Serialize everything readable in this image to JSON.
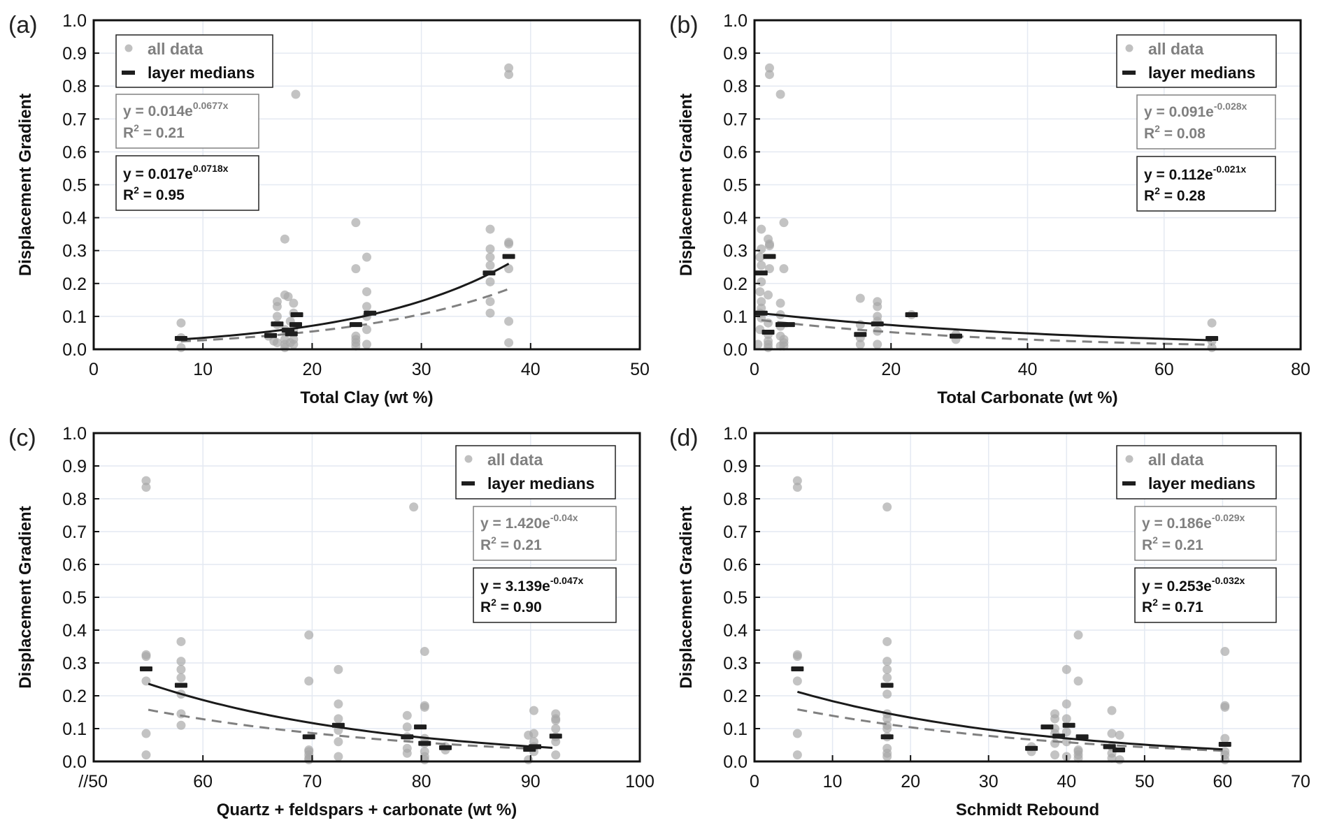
{
  "chart_data": [
    {
      "type": "scatter",
      "panel_label": "(a)",
      "xlabel": "Total Clay (wt %)",
      "ylabel": "Displacement Gradient",
      "xlim": [
        0,
        50
      ],
      "ylim": [
        0,
        1.0
      ],
      "xticks": [
        0,
        10,
        20,
        30,
        40,
        50
      ],
      "xtick_labels": [
        "0",
        "10",
        "20",
        "30",
        "40",
        "50"
      ],
      "yticks": [
        0,
        0.1,
        0.2,
        0.3,
        0.4,
        0.5,
        0.6,
        0.7,
        0.8,
        0.9,
        1.0
      ],
      "ytick_labels": [
        "0.0",
        "0.1",
        "0.2",
        "0.3",
        "0.4",
        "0.5",
        "0.6",
        "0.7",
        "0.8",
        "0.9",
        "1.0"
      ],
      "grid": true,
      "legend": {
        "placement": "top-left",
        "entries": [
          "all data",
          "layer medians"
        ]
      },
      "fit_all": {
        "eq_prefix": "y = 0.014e",
        "eq_exp": "0.0677x",
        "r2_label": "R",
        "r2_sup": "2",
        "r2_value": " = 0.21",
        "a": 0.014,
        "b": 0.0677,
        "x_range": [
          8,
          38
        ]
      },
      "fit_medians": {
        "eq_prefix": "y = 0.017e",
        "eq_exp": "0.0718x",
        "r2_label": "R",
        "r2_sup": "2",
        "r2_value": " = 0.95",
        "a": 0.017,
        "b": 0.0718,
        "x_range": [
          8,
          38
        ]
      },
      "all_data": [
        [
          8,
          0.08
        ],
        [
          8,
          0.035
        ],
        [
          8,
          0.005
        ],
        [
          16,
          0.04
        ],
        [
          16.5,
          0.025
        ],
        [
          16.8,
          0.145
        ],
        [
          16.8,
          0.13
        ],
        [
          16.8,
          0.1
        ],
        [
          16.8,
          0.075
        ],
        [
          16.8,
          0.02
        ],
        [
          17.5,
          0.335
        ],
        [
          17.5,
          0.165
        ],
        [
          17.5,
          0.06
        ],
        [
          17.5,
          0.03
        ],
        [
          17.5,
          0.015
        ],
        [
          17.5,
          0.005
        ],
        [
          17.8,
          0.16
        ],
        [
          18,
          0.085
        ],
        [
          18,
          0.02
        ],
        [
          18.3,
          0.14
        ],
        [
          18.3,
          0.11
        ],
        [
          18.3,
          0.06
        ],
        [
          18.3,
          0.03
        ],
        [
          18.3,
          0.015
        ],
        [
          18.5,
          0.775
        ],
        [
          24,
          0.385
        ],
        [
          24,
          0.245
        ],
        [
          24,
          0.04
        ],
        [
          24,
          0.03
        ],
        [
          24,
          0.02
        ],
        [
          24,
          0.01
        ],
        [
          25,
          0.28
        ],
        [
          25,
          0.175
        ],
        [
          25,
          0.13
        ],
        [
          25,
          0.1
        ],
        [
          25,
          0.06
        ],
        [
          25,
          0.015
        ],
        [
          36.3,
          0.365
        ],
        [
          36.3,
          0.305
        ],
        [
          36.3,
          0.28
        ],
        [
          36.3,
          0.255
        ],
        [
          36.3,
          0.205
        ],
        [
          36.3,
          0.145
        ],
        [
          36.3,
          0.11
        ],
        [
          38,
          0.855
        ],
        [
          38,
          0.835
        ],
        [
          38,
          0.325
        ],
        [
          38,
          0.32
        ],
        [
          38,
          0.245
        ],
        [
          38,
          0.085
        ],
        [
          38,
          0.02
        ]
      ],
      "medians": [
        [
          8,
          0.033
        ],
        [
          16.2,
          0.042
        ],
        [
          16.8,
          0.077
        ],
        [
          17.8,
          0.058
        ],
        [
          18.1,
          0.047
        ],
        [
          18.5,
          0.075
        ],
        [
          18.6,
          0.105
        ],
        [
          24,
          0.075
        ],
        [
          25.3,
          0.11
        ],
        [
          36.2,
          0.232
        ],
        [
          38,
          0.282
        ]
      ]
    },
    {
      "type": "scatter",
      "panel_label": "(b)",
      "xlabel": "Total Carbonate (wt %)",
      "ylabel": "Displacement Gradient",
      "xlim": [
        0,
        80
      ],
      "ylim": [
        0,
        1.0
      ],
      "xticks": [
        0,
        20,
        40,
        60,
        80
      ],
      "xtick_labels": [
        "0",
        "20",
        "40",
        "60",
        "80"
      ],
      "yticks": [
        0,
        0.1,
        0.2,
        0.3,
        0.4,
        0.5,
        0.6,
        0.7,
        0.8,
        0.9,
        1.0
      ],
      "ytick_labels": [
        "0.0",
        "0.1",
        "0.2",
        "0.3",
        "0.4",
        "0.5",
        "0.6",
        "0.7",
        "0.8",
        "0.9",
        "1.0"
      ],
      "grid": true,
      "legend": {
        "placement": "top-right",
        "entries": [
          "all data",
          "layer medians"
        ]
      },
      "fit_all": {
        "eq_prefix": "y = 0.091e",
        "eq_exp": "-0.028x",
        "r2_label": "R",
        "r2_sup": "2",
        "r2_value": " = 0.08",
        "a": 0.091,
        "b": -0.028,
        "x_range": [
          1,
          67
        ]
      },
      "fit_medians": {
        "eq_prefix": "y = 0.112e",
        "eq_exp": "-0.021x",
        "r2_label": "R",
        "r2_sup": "2",
        "r2_value": " = 0.28",
        "a": 0.112,
        "b": -0.021,
        "x_range": [
          0,
          67
        ]
      },
      "all_data": [
        [
          0.5,
          0.015
        ],
        [
          1,
          0.365
        ],
        [
          1,
          0.305
        ],
        [
          0.8,
          0.28
        ],
        [
          1,
          0.255
        ],
        [
          1,
          0.205
        ],
        [
          0.8,
          0.175
        ],
        [
          1,
          0.145
        ],
        [
          1,
          0.125
        ],
        [
          0.8,
          0.11
        ],
        [
          1,
          0.095
        ],
        [
          0.8,
          0.06
        ],
        [
          2,
          0.335
        ],
        [
          2.2,
          0.32
        ],
        [
          2.2,
          0.315
        ],
        [
          2.2,
          0.245
        ],
        [
          2,
          0.165
        ],
        [
          2,
          0.08
        ],
        [
          2,
          0.045
        ],
        [
          2,
          0.025
        ],
        [
          2,
          0.015
        ],
        [
          2,
          0.005
        ],
        [
          3.8,
          0.775
        ],
        [
          2.2,
          0.855
        ],
        [
          2.2,
          0.835
        ],
        [
          4.3,
          0.385
        ],
        [
          4.3,
          0.245
        ],
        [
          3.8,
          0.14
        ],
        [
          3.8,
          0.105
        ],
        [
          3.8,
          0.07
        ],
        [
          3.8,
          0.04
        ],
        [
          4.3,
          0.03
        ],
        [
          4.3,
          0.02
        ],
        [
          4.3,
          0.01
        ],
        [
          3.8,
          0.01
        ],
        [
          15.5,
          0.155
        ],
        [
          15.5,
          0.075
        ],
        [
          15.5,
          0.035
        ],
        [
          15.5,
          0.015
        ],
        [
          18,
          0.145
        ],
        [
          18,
          0.13
        ],
        [
          18,
          0.1
        ],
        [
          18,
          0.085
        ],
        [
          18,
          0.055
        ],
        [
          18,
          0.015
        ],
        [
          23,
          0.105
        ],
        [
          29.5,
          0.045
        ],
        [
          29.5,
          0.03
        ],
        [
          67,
          0.08
        ],
        [
          67,
          0.025
        ],
        [
          67,
          0.005
        ]
      ],
      "medians": [
        [
          1,
          0.11
        ],
        [
          1,
          0.232
        ],
        [
          2.2,
          0.282
        ],
        [
          2,
          0.052
        ],
        [
          4,
          0.075
        ],
        [
          5,
          0.075
        ],
        [
          15.5,
          0.045
        ],
        [
          18,
          0.077
        ],
        [
          23,
          0.105
        ],
        [
          29.5,
          0.04
        ],
        [
          67,
          0.033
        ]
      ]
    },
    {
      "type": "scatter",
      "panel_label": "(c)",
      "xlabel": "Quartz + feldspars + carbonate (wt %)",
      "ylabel": "Displacement Gradient",
      "xlim": [
        50,
        100
      ],
      "ylim": [
        0,
        1.0
      ],
      "axis_break": "//",
      "xticks": [
        50,
        60,
        70,
        80,
        90,
        100
      ],
      "xtick_labels": [
        "//50",
        "60",
        "70",
        "80",
        "90",
        "100"
      ],
      "yticks": [
        0,
        0.1,
        0.2,
        0.3,
        0.4,
        0.5,
        0.6,
        0.7,
        0.8,
        0.9,
        1.0
      ],
      "ytick_labels": [
        "0.0",
        "0.1",
        "0.2",
        "0.3",
        "0.4",
        "0.5",
        "0.6",
        "0.7",
        "0.8",
        "0.9",
        "1.0"
      ],
      "grid": true,
      "legend": {
        "placement": "top-right",
        "entries": [
          "all data",
          "layer medians"
        ]
      },
      "fit_all": {
        "eq_prefix": "y = 1.420e",
        "eq_exp": "-0.04x",
        "r2_label": "R",
        "r2_sup": "2",
        "r2_value": " = 0.21",
        "a": 1.42,
        "b": -0.04,
        "x_range": [
          55,
          90
        ]
      },
      "fit_medians": {
        "eq_prefix": "y = 3.139e",
        "eq_exp": "-0.047x",
        "r2_label": "R",
        "r2_sup": "2",
        "r2_value": " = 0.90",
        "a": 3.139,
        "b": -0.047,
        "x_range": [
          55,
          92
        ]
      },
      "all_data": [
        [
          54.8,
          0.855
        ],
        [
          54.8,
          0.835
        ],
        [
          54.8,
          0.325
        ],
        [
          54.8,
          0.32
        ],
        [
          54.8,
          0.245
        ],
        [
          54.8,
          0.085
        ],
        [
          54.8,
          0.02
        ],
        [
          58,
          0.365
        ],
        [
          58,
          0.305
        ],
        [
          58,
          0.28
        ],
        [
          58,
          0.255
        ],
        [
          58,
          0.205
        ],
        [
          58,
          0.145
        ],
        [
          58,
          0.11
        ],
        [
          69.7,
          0.385
        ],
        [
          69.7,
          0.245
        ],
        [
          69.7,
          0.035
        ],
        [
          69.7,
          0.03
        ],
        [
          69.7,
          0.02
        ],
        [
          69.7,
          0.01
        ],
        [
          69.7,
          0.005
        ],
        [
          72.4,
          0.28
        ],
        [
          72.4,
          0.175
        ],
        [
          72.4,
          0.13
        ],
        [
          72.4,
          0.095
        ],
        [
          72.4,
          0.06
        ],
        [
          72.4,
          0.015
        ],
        [
          78.7,
          0.14
        ],
        [
          78.7,
          0.105
        ],
        [
          78.7,
          0.075
        ],
        [
          78.7,
          0.04
        ],
        [
          78.7,
          0.025
        ],
        [
          79.3,
          0.775
        ],
        [
          80.3,
          0.335
        ],
        [
          80.3,
          0.17
        ],
        [
          80.3,
          0.165
        ],
        [
          80.3,
          0.07
        ],
        [
          80.3,
          0.055
        ],
        [
          80.3,
          0.03
        ],
        [
          80.3,
          0.015
        ],
        [
          80.3,
          0.005
        ],
        [
          82.2,
          0.045
        ],
        [
          82.2,
          0.035
        ],
        [
          90.3,
          0.155
        ],
        [
          89.8,
          0.08
        ],
        [
          90.3,
          0.085
        ],
        [
          90.3,
          0.06
        ],
        [
          90.3,
          0.045
        ],
        [
          90.3,
          0.03
        ],
        [
          89.8,
          0.005
        ],
        [
          92.3,
          0.145
        ],
        [
          92.3,
          0.13
        ],
        [
          92.3,
          0.125
        ],
        [
          92.3,
          0.1
        ],
        [
          92.3,
          0.075
        ],
        [
          92.3,
          0.06
        ],
        [
          92.3,
          0.02
        ]
      ],
      "medians": [
        [
          54.8,
          0.282
        ],
        [
          58,
          0.232
        ],
        [
          69.7,
          0.075
        ],
        [
          72.4,
          0.11
        ],
        [
          78.7,
          0.075
        ],
        [
          79.9,
          0.105
        ],
        [
          80.3,
          0.055
        ],
        [
          82.2,
          0.042
        ],
        [
          89.9,
          0.037
        ],
        [
          90.4,
          0.045
        ],
        [
          92.3,
          0.077
        ]
      ]
    },
    {
      "type": "scatter",
      "panel_label": "(d)",
      "xlabel": "Schmidt Rebound",
      "ylabel": "Displacement Gradient",
      "xlim": [
        0,
        70
      ],
      "ylim": [
        0,
        1.0
      ],
      "xticks": [
        0,
        10,
        20,
        30,
        40,
        50,
        60,
        70
      ],
      "xtick_labels": [
        "0",
        "10",
        "20",
        "30",
        "40",
        "50",
        "60",
        "70"
      ],
      "yticks": [
        0,
        0.1,
        0.2,
        0.3,
        0.4,
        0.5,
        0.6,
        0.7,
        0.8,
        0.9,
        1.0
      ],
      "ytick_labels": [
        "0.0",
        "0.1",
        "0.2",
        "0.3",
        "0.4",
        "0.5",
        "0.6",
        "0.7",
        "0.8",
        "0.9",
        "1.0"
      ],
      "grid": true,
      "legend": {
        "placement": "top-right",
        "entries": [
          "all data",
          "layer medians"
        ]
      },
      "fit_all": {
        "eq_prefix": "y = 0.186e",
        "eq_exp": "-0.029x",
        "r2_label": "R",
        "r2_sup": "2",
        "r2_value": " = 0.21",
        "a": 0.186,
        "b": -0.029,
        "x_range": [
          5.5,
          60
        ]
      },
      "fit_medians": {
        "eq_prefix": "y = 0.253e",
        "eq_exp": "-0.032x",
        "r2_label": "R",
        "r2_sup": "2",
        "r2_value": " = 0.71",
        "a": 0.253,
        "b": -0.032,
        "x_range": [
          5.5,
          60
        ]
      },
      "all_data": [
        [
          5.5,
          0.855
        ],
        [
          5.5,
          0.835
        ],
        [
          5.5,
          0.325
        ],
        [
          5.5,
          0.32
        ],
        [
          5.5,
          0.245
        ],
        [
          5.5,
          0.085
        ],
        [
          5.5,
          0.02
        ],
        [
          17,
          0.775
        ],
        [
          17,
          0.365
        ],
        [
          17,
          0.305
        ],
        [
          17,
          0.28
        ],
        [
          17,
          0.255
        ],
        [
          17,
          0.205
        ],
        [
          17,
          0.145
        ],
        [
          17,
          0.13
        ],
        [
          17,
          0.11
        ],
        [
          17,
          0.1
        ],
        [
          17,
          0.075
        ],
        [
          17,
          0.04
        ],
        [
          17,
          0.025
        ],
        [
          17,
          0.015
        ],
        [
          35.5,
          0.045
        ],
        [
          35.5,
          0.03
        ],
        [
          38.5,
          0.145
        ],
        [
          38.5,
          0.13
        ],
        [
          38.5,
          0.1
        ],
        [
          38.5,
          0.085
        ],
        [
          38.5,
          0.055
        ],
        [
          38.5,
          0.02
        ],
        [
          40,
          0.28
        ],
        [
          40,
          0.175
        ],
        [
          40,
          0.13
        ],
        [
          40,
          0.09
        ],
        [
          40,
          0.06
        ],
        [
          40,
          0.015
        ],
        [
          41.5,
          0.385
        ],
        [
          41.5,
          0.245
        ],
        [
          41.5,
          0.035
        ],
        [
          41.5,
          0.03
        ],
        [
          41.5,
          0.02
        ],
        [
          41.5,
          0.01
        ],
        [
          45.8,
          0.155
        ],
        [
          45.8,
          0.085
        ],
        [
          45.8,
          0.045
        ],
        [
          45.8,
          0.025
        ],
        [
          45.8,
          0.01
        ],
        [
          46.8,
          0.08
        ],
        [
          46.8,
          0.005
        ],
        [
          60.3,
          0.335
        ],
        [
          60.3,
          0.17
        ],
        [
          60.3,
          0.165
        ],
        [
          60.3,
          0.07
        ],
        [
          60.3,
          0.03
        ],
        [
          60.3,
          0.02
        ],
        [
          60.3,
          0.005
        ]
      ],
      "medians": [
        [
          5.5,
          0.282
        ],
        [
          17,
          0.232
        ],
        [
          17,
          0.075
        ],
        [
          35.5,
          0.04
        ],
        [
          37.5,
          0.105
        ],
        [
          39,
          0.077
        ],
        [
          40.3,
          0.11
        ],
        [
          42,
          0.075
        ],
        [
          45.5,
          0.045
        ],
        [
          46.7,
          0.035
        ],
        [
          60.3,
          0.052
        ]
      ]
    }
  ]
}
